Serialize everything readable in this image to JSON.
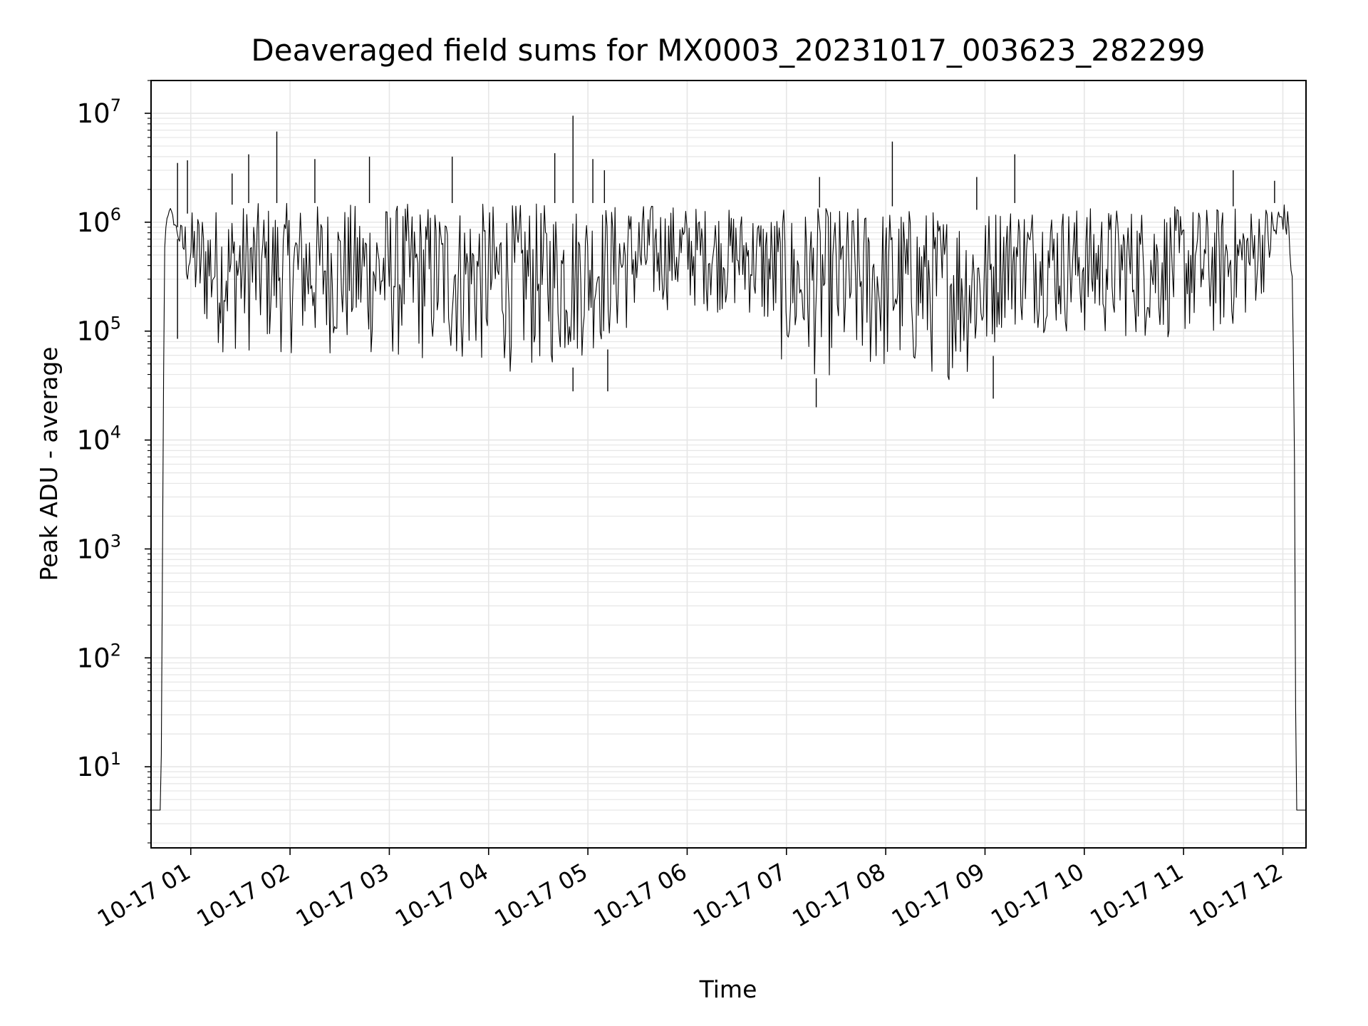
{
  "chart_data": {
    "type": "line",
    "title": "Deaveraged field sums for MX0003_20231017_003623_282299",
    "xlabel": "Time",
    "ylabel": "Peak ADU - average",
    "yscale": "log",
    "ylim": [
      1.8,
      20000000
    ],
    "xlim": [
      "2023-10-17T00:36",
      "2023-10-17T12:14"
    ],
    "grid": true,
    "line_color": "#000000",
    "grid_color": "#e6e6e6",
    "x_ticks": [
      {
        "t": "2023-10-17T01:00",
        "label": "10-17 01"
      },
      {
        "t": "2023-10-17T02:00",
        "label": "10-17 02"
      },
      {
        "t": "2023-10-17T03:00",
        "label": "10-17 03"
      },
      {
        "t": "2023-10-17T04:00",
        "label": "10-17 04"
      },
      {
        "t": "2023-10-17T05:00",
        "label": "10-17 05"
      },
      {
        "t": "2023-10-17T06:00",
        "label": "10-17 06"
      },
      {
        "t": "2023-10-17T07:00",
        "label": "10-17 07"
      },
      {
        "t": "2023-10-17T08:00",
        "label": "10-17 08"
      },
      {
        "t": "2023-10-17T09:00",
        "label": "10-17 09"
      },
      {
        "t": "2023-10-17T10:00",
        "label": "10-17 10"
      },
      {
        "t": "2023-10-17T11:00",
        "label": "10-17 11"
      },
      {
        "t": "2023-10-17T12:00",
        "label": "10-17 12"
      }
    ],
    "y_ticks": [
      {
        "value": 10,
        "base": "10",
        "exp": "1"
      },
      {
        "value": 100,
        "base": "10",
        "exp": "2"
      },
      {
        "value": 1000,
        "base": "10",
        "exp": "3"
      },
      {
        "value": 10000,
        "base": "10",
        "exp": "4"
      },
      {
        "value": 100000,
        "base": "10",
        "exp": "5"
      },
      {
        "value": 1000000,
        "base": "10",
        "exp": "6"
      },
      {
        "value": 10000000,
        "base": "10",
        "exp": "7"
      }
    ],
    "series": [
      {
        "x": [
          "2023-10-17T00:36",
          "2023-10-17T00:40",
          "2023-10-17T00:42",
          "2023-10-17T00:44",
          "2023-10-17T00:45",
          "2023-10-17T00:47",
          "2023-10-17T00:49",
          "2023-10-17T00:52",
          "2023-10-17T00:54",
          "2023-10-17T00:58",
          "2023-10-17T01:05",
          "2023-10-17T01:12",
          "2023-10-17T01:20",
          "2023-10-17T01:30",
          "2023-10-17T01:50",
          "2023-10-17T02:20",
          "2023-10-17T03:00",
          "2023-10-17T03:40",
          "2023-10-17T04:20",
          "2023-10-17T04:50",
          "2023-10-17T05:00",
          "2023-10-17T05:15",
          "2023-10-17T05:40",
          "2023-10-17T06:10",
          "2023-10-17T06:40",
          "2023-10-17T07:00",
          "2023-10-17T07:30",
          "2023-10-17T08:10",
          "2023-10-17T08:40",
          "2023-10-17T09:00",
          "2023-10-17T09:10",
          "2023-10-17T09:30",
          "2023-10-17T10:00",
          "2023-10-17T10:40",
          "2023-10-17T11:20",
          "2023-10-17T11:40",
          "2023-10-17T11:55",
          "2023-10-17T12:00",
          "2023-10-17T12:04",
          "2023-10-17T12:06",
          "2023-10-17T12:07",
          "2023-10-17T12:08",
          "2023-10-17T12:14"
        ],
        "low": [
          4,
          4,
          4,
          400000,
          900000,
          1200000,
          1000000,
          700000,
          400000,
          200000,
          100000,
          80000,
          60000,
          60000,
          60000,
          60000,
          50000,
          45000,
          40000,
          45000,
          60000,
          70000,
          150000,
          150000,
          130000,
          40000,
          35000,
          35000,
          35000,
          35000,
          100000,
          100000,
          80000,
          80000,
          80000,
          120000,
          350000,
          800000,
          500000,
          100000,
          8000,
          4,
          4
        ],
        "high": [
          4,
          4,
          4,
          500000,
          1000000,
          1500000,
          1200000,
          900000,
          1000000,
          1200000,
          1400000,
          1400000,
          1400000,
          1500000,
          1500000,
          1500000,
          1500000,
          1500000,
          1500000,
          1500000,
          1500000,
          1500000,
          1500000,
          1400000,
          1300000,
          1300000,
          1400000,
          1400000,
          1300000,
          1300000,
          1500000,
          1500000,
          1400000,
          1400000,
          1400000,
          1400000,
          1500000,
          1600000,
          1200000,
          300000,
          8000,
          4,
          4
        ],
        "spikes": [
          {
            "x": "2023-10-17T00:52",
            "y": 3500000
          },
          {
            "x": "2023-10-17T00:58",
            "y": 3700000
          },
          {
            "x": "2023-10-17T01:25",
            "y": 2800000
          },
          {
            "x": "2023-10-17T01:35",
            "y": 4200000
          },
          {
            "x": "2023-10-17T01:52",
            "y": 6800000
          },
          {
            "x": "2023-10-17T02:15",
            "y": 3800000
          },
          {
            "x": "2023-10-17T02:48",
            "y": 4000000
          },
          {
            "x": "2023-10-17T03:38",
            "y": 4000000
          },
          {
            "x": "2023-10-17T04:40",
            "y": 4300000
          },
          {
            "x": "2023-10-17T04:51",
            "y": 9500000
          },
          {
            "x": "2023-10-17T05:03",
            "y": 3800000
          },
          {
            "x": "2023-10-17T05:10",
            "y": 3000000
          },
          {
            "x": "2023-10-17T07:20",
            "y": 2600000
          },
          {
            "x": "2023-10-17T08:04",
            "y": 5500000
          },
          {
            "x": "2023-10-17T08:55",
            "y": 2600000
          },
          {
            "x": "2023-10-17T09:18",
            "y": 4200000
          },
          {
            "x": "2023-10-17T11:30",
            "y": 3000000
          },
          {
            "x": "2023-10-17T11:55",
            "y": 2400000
          }
        ],
        "dips": [
          {
            "x": "2023-10-17T00:52",
            "y": 85000
          },
          {
            "x": "2023-10-17T04:51",
            "y": 28000
          },
          {
            "x": "2023-10-17T05:12",
            "y": 28000
          },
          {
            "x": "2023-10-17T07:18",
            "y": 20000
          },
          {
            "x": "2023-10-17T09:05",
            "y": 24000
          }
        ]
      }
    ]
  }
}
